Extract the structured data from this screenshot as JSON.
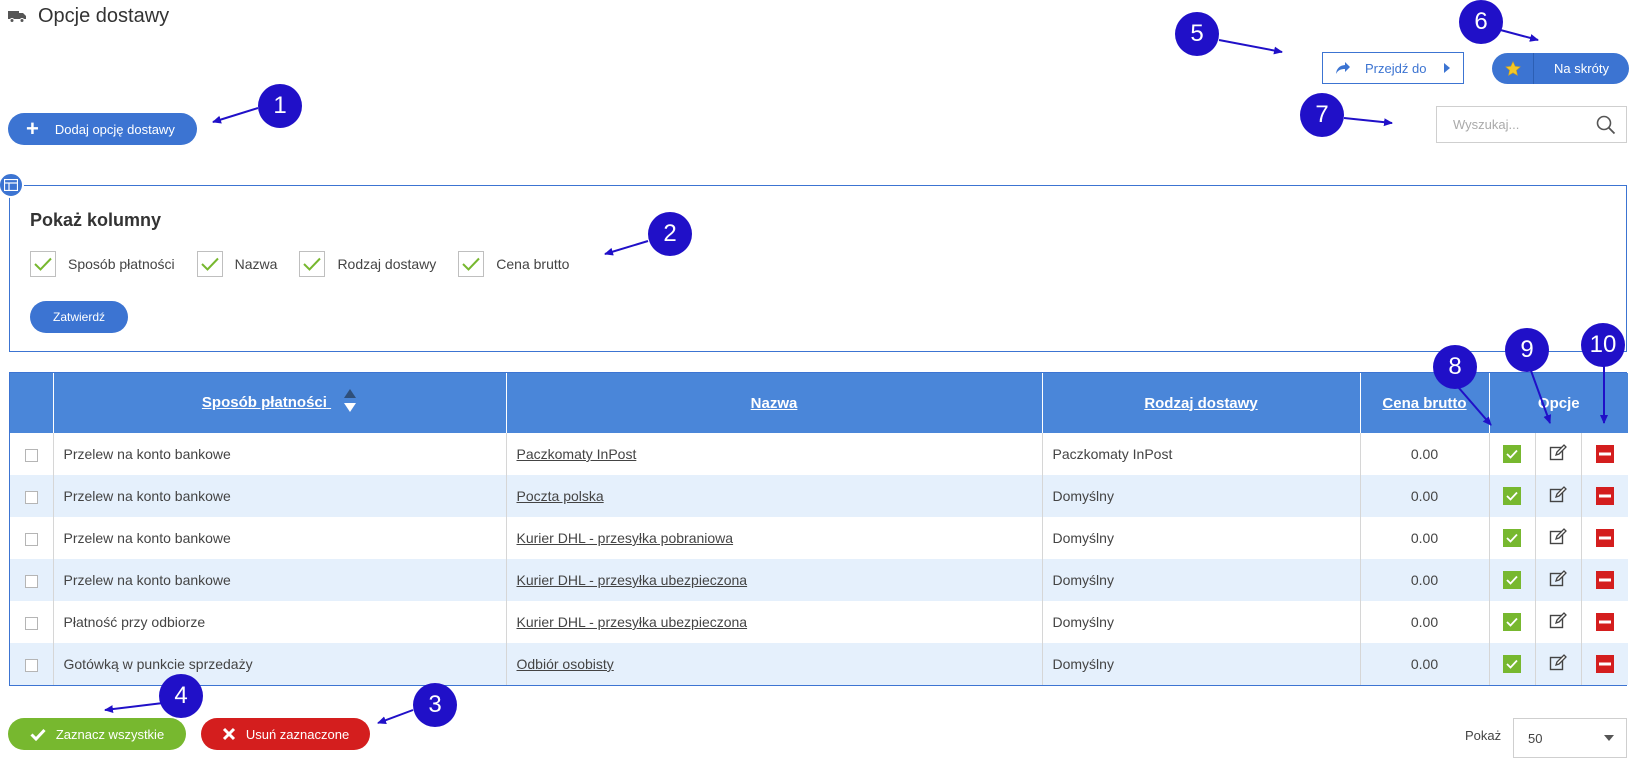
{
  "header": {
    "title": "Opcje dostawy",
    "icon": "truck-icon"
  },
  "toolbar": {
    "add_label": "Dodaj opcję dostawy",
    "goto_label": "Przejdź do",
    "shortcut_label": "Na skróty",
    "search_placeholder": "Wyszukaj..."
  },
  "columns_panel": {
    "title": "Pokaż kolumny",
    "columns": [
      {
        "label": "Sposób płatności",
        "checked": true
      },
      {
        "label": "Nazwa",
        "checked": true
      },
      {
        "label": "Rodzaj dostawy",
        "checked": true
      },
      {
        "label": "Cena brutto",
        "checked": true
      }
    ],
    "confirm_label": "Zatwierdź"
  },
  "table": {
    "headers": {
      "payment": "Sposób płatności",
      "name": "Nazwa",
      "delivery": "Rodzaj dostawy",
      "price": "Cena brutto",
      "options": "Opcje"
    },
    "rows": [
      {
        "payment": "Przelew na konto bankowe",
        "name": "Paczkomaty InPost",
        "delivery": "Paczkomaty InPost",
        "price": "0.00"
      },
      {
        "payment": "Przelew na konto bankowe",
        "name": "Poczta polska",
        "delivery": "Domyślny",
        "price": "0.00"
      },
      {
        "payment": "Przelew na konto bankowe",
        "name": "Kurier DHL - przesyłka pobraniowa",
        "delivery": "Domyślny",
        "price": "0.00"
      },
      {
        "payment": "Przelew na konto bankowe",
        "name": "Kurier DHL - przesyłka ubezpieczona",
        "delivery": "Domyślny",
        "price": "0.00"
      },
      {
        "payment": "Płatność przy odbiorze",
        "name": "Kurier DHL - przesyłka ubezpieczona",
        "delivery": "Domyślny",
        "price": "0.00"
      },
      {
        "payment": "Gotówką w punkcie sprzedaży",
        "name": "Odbiór osobisty",
        "delivery": "Domyślny",
        "price": "0.00"
      }
    ]
  },
  "footer": {
    "select_all_label": "Zaznacz wszystkie",
    "delete_selected_label": "Usuń zaznaczone",
    "show_label": "Pokaż",
    "page_size": "50"
  },
  "callouts": [
    "1",
    "2",
    "3",
    "4",
    "5",
    "6",
    "7",
    "8",
    "9",
    "10"
  ],
  "colors": {
    "primary": "#3c74d2",
    "header_bg": "#4a86d9",
    "green": "#77b82f",
    "red": "#d41e1e",
    "callout": "#2010c8",
    "row_alt": "#e5f0fc"
  }
}
